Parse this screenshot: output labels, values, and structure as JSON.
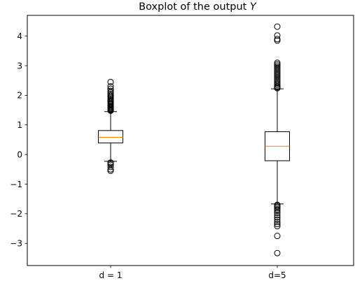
{
  "chart_data": {
    "type": "boxplot",
    "title": "Boxplot of the output Y",
    "title_parts": {
      "text": "Boxplot of the output ",
      "var": "Y"
    },
    "xlabel": "",
    "ylabel": "",
    "categories": [
      "d = 1",
      "d=5"
    ],
    "ylim": [
      -3.75,
      4.7
    ],
    "yticks": [
      -3,
      -2,
      -1,
      0,
      1,
      2,
      3,
      4
    ],
    "ytick_labels": [
      "−3",
      "−2",
      "−1",
      "0",
      "1",
      "2",
      "3",
      "4"
    ],
    "grid": false,
    "colors": {
      "box": "#000000",
      "median": "#ff7f0e",
      "outlier": "#000000"
    },
    "boxes": [
      {
        "label": "d = 1",
        "whisker_low": -0.23,
        "q1": 0.39,
        "median": 0.58,
        "q3": 0.81,
        "whisker_high": 1.45,
        "outliers": [
          -0.55,
          -0.5,
          -0.42,
          -0.35,
          -0.3,
          -0.27,
          1.48,
          1.5,
          1.52,
          1.55,
          1.58,
          1.6,
          1.63,
          1.66,
          1.7,
          1.73,
          1.77,
          1.8,
          1.84,
          1.88,
          1.92,
          1.96,
          2.0,
          2.05,
          2.1,
          2.15,
          2.22,
          2.3,
          2.45
        ]
      },
      {
        "label": "d=5",
        "whisker_low": -1.67,
        "q1": -0.21,
        "median": 0.28,
        "q3": 0.77,
        "whisker_high": 2.22,
        "outliers": [
          -3.33,
          -2.75,
          -2.42,
          -2.35,
          -2.28,
          -2.2,
          -2.12,
          -2.05,
          -1.97,
          -1.9,
          -1.85,
          -1.8,
          -1.76,
          -1.72,
          -1.7,
          2.24,
          2.27,
          2.3,
          2.35,
          2.4,
          2.45,
          2.5,
          2.55,
          2.6,
          2.65,
          2.7,
          2.75,
          2.8,
          2.85,
          2.9,
          2.95,
          3.0,
          3.05,
          3.1,
          3.85,
          3.9,
          4.02,
          4.32
        ]
      }
    ]
  }
}
